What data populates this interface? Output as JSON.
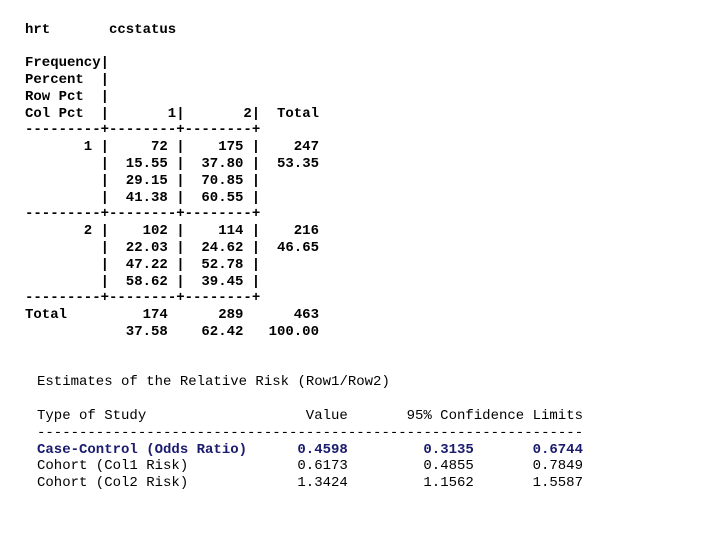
{
  "crosstab": {
    "row_var": "hrt",
    "col_var": "ccstatus",
    "stat_labels": [
      "Frequency",
      "Percent",
      "Row Pct",
      "Col Pct"
    ],
    "col_headers": [
      "1",
      "2",
      "Total"
    ],
    "rows": [
      {
        "label": "1",
        "cells": [
          {
            "freq": "72",
            "pct": "15.55",
            "row_pct": "29.15",
            "col_pct": "41.38"
          },
          {
            "freq": "175",
            "pct": "37.80",
            "row_pct": "70.85",
            "col_pct": "60.55"
          }
        ],
        "total_freq": "247",
        "total_pct": "53.35"
      },
      {
        "label": "2",
        "cells": [
          {
            "freq": "102",
            "pct": "22.03",
            "row_pct": "47.22",
            "col_pct": "58.62"
          },
          {
            "freq": "114",
            "pct": "24.62",
            "row_pct": "52.78",
            "col_pct": "39.45"
          }
        ],
        "total_freq": "216",
        "total_pct": "46.65"
      }
    ],
    "totals": {
      "label": "Total",
      "freqs": [
        "174",
        "289",
        "463"
      ],
      "pcts": [
        "37.58",
        "62.42",
        "100.00"
      ]
    }
  },
  "relative_risk": {
    "title": "Estimates of the Relative Risk (Row1/Row2)",
    "headers": {
      "type": "Type of Study",
      "value": "Value",
      "ci": "95% Confidence Limits"
    },
    "highlight_color": "#1a1a6e",
    "rows": [
      {
        "type": "Case-Control (Odds Ratio)",
        "value": "0.4598",
        "lower": "0.3135",
        "upper": "0.6744",
        "highlight": true
      },
      {
        "type": "Cohort (Col1 Risk)",
        "value": "0.6173",
        "lower": "0.4855",
        "upper": "0.7849",
        "highlight": false
      },
      {
        "type": "Cohort (Col2 Risk)",
        "value": "1.3424",
        "lower": "1.1562",
        "upper": "1.5587",
        "highlight": false
      }
    ]
  }
}
